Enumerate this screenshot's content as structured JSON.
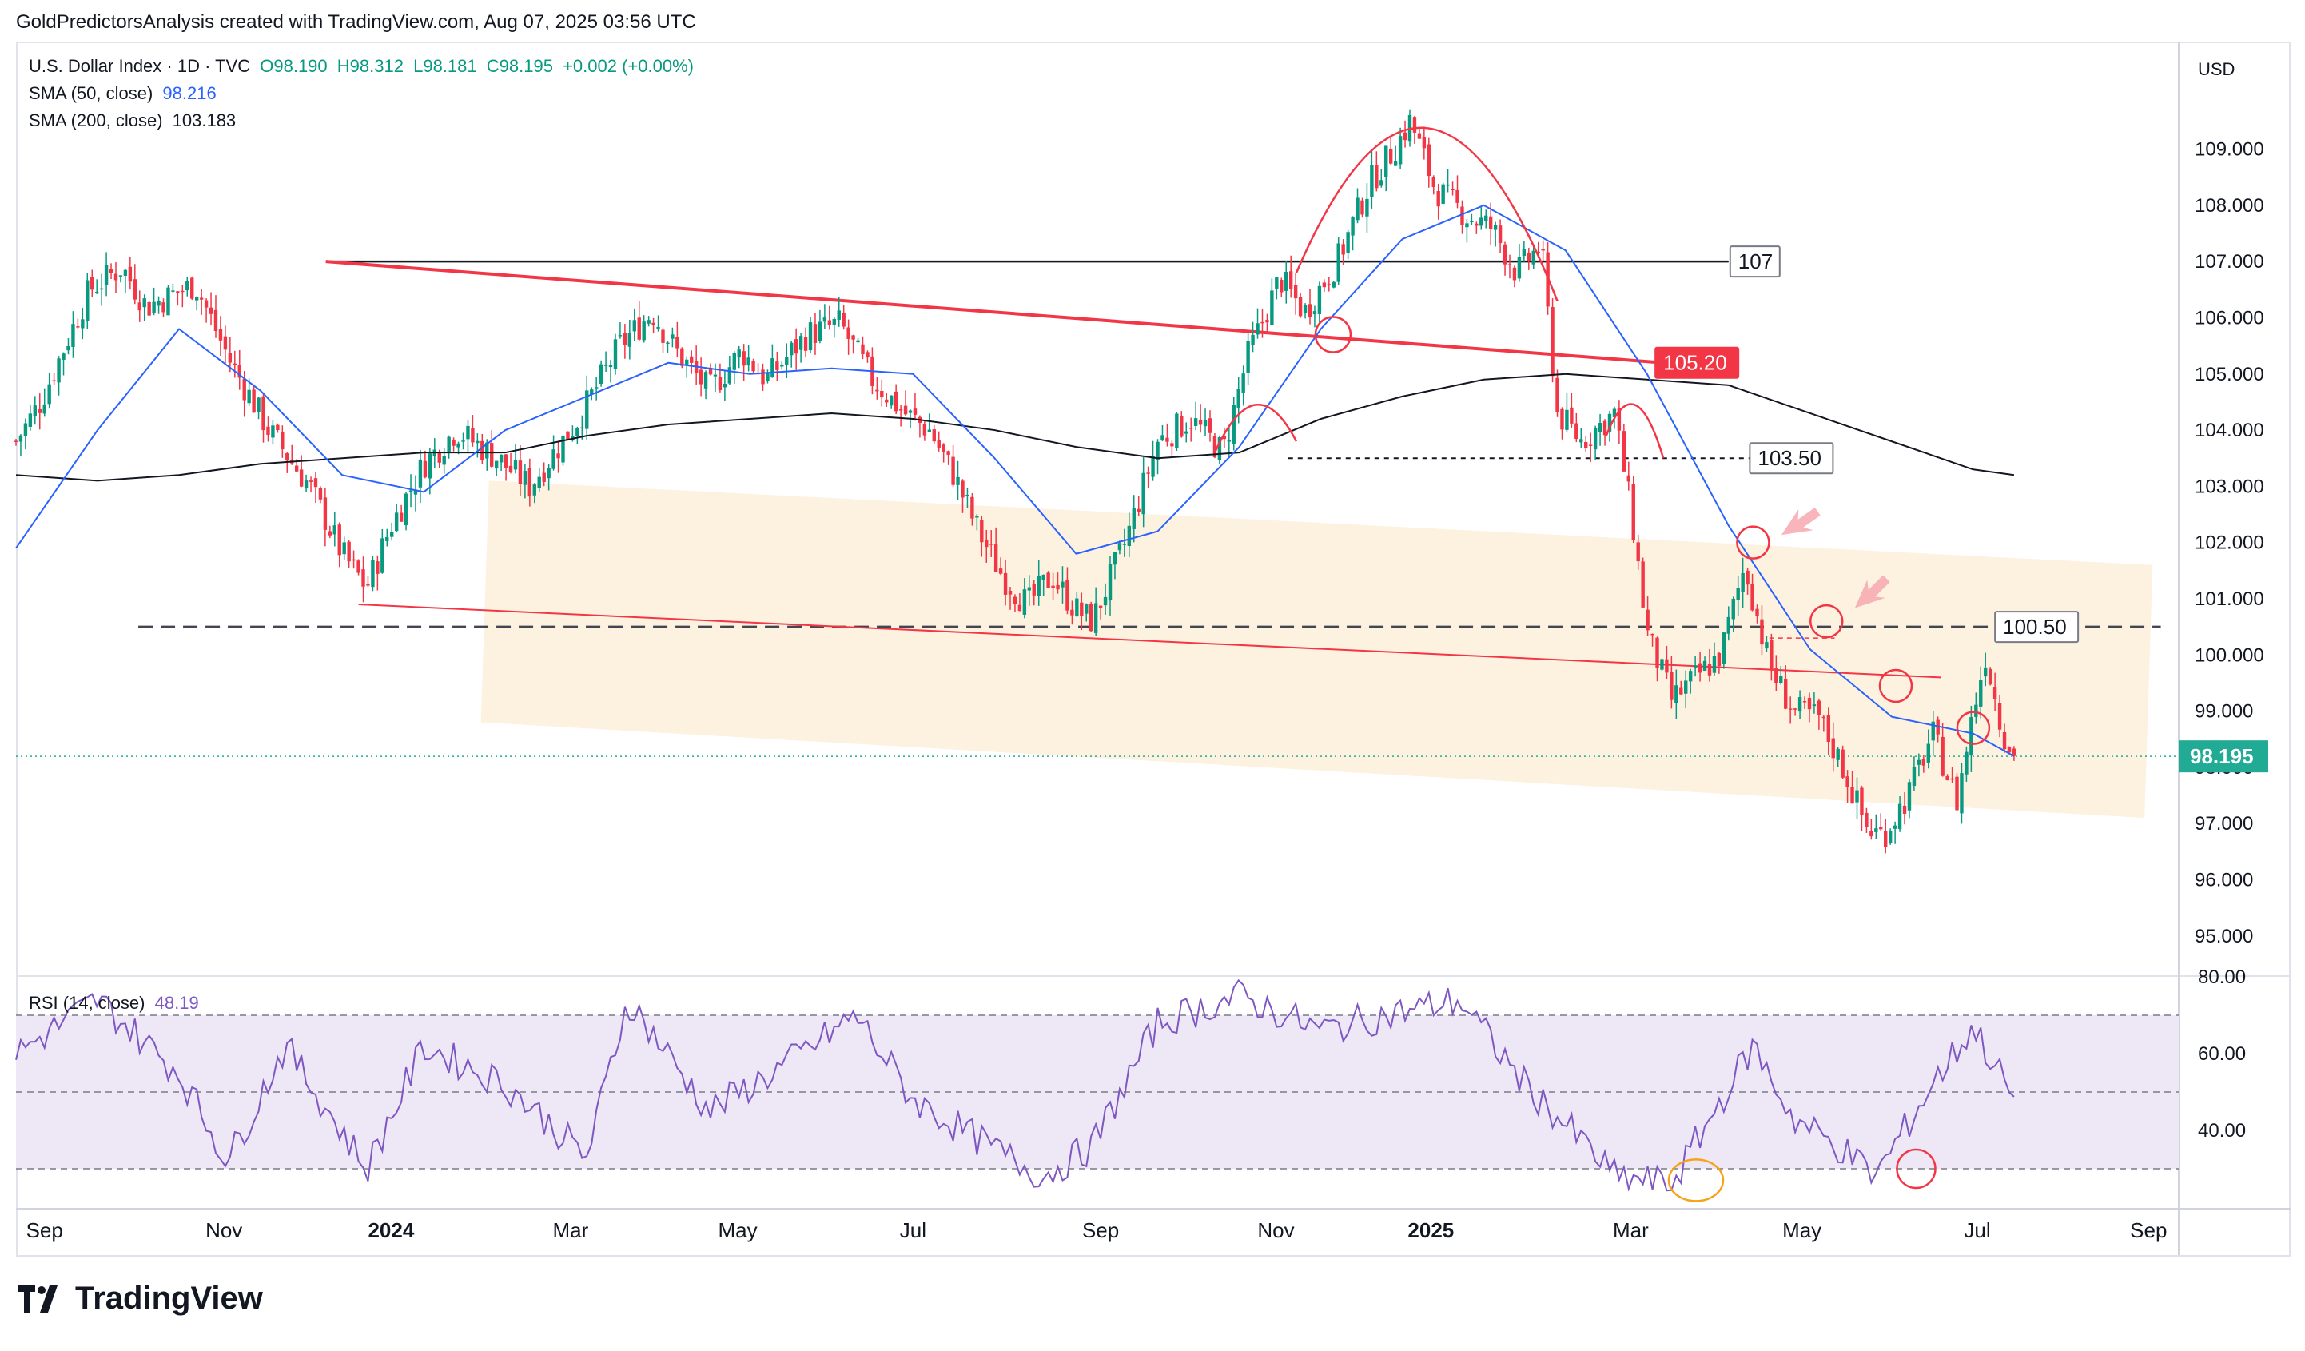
{
  "header": {
    "caption": "GoldPredictorsAnalysis created with TradingView.com, Aug 07, 2025 03:56 UTC"
  },
  "legend": {
    "symbol_line": "U.S. Dollar Index · 1D · TVC",
    "ohlc": {
      "open": "O98.190",
      "high": "H98.312",
      "low": "L98.181",
      "close": "C98.195",
      "change": "+0.002 (+0.00%)"
    },
    "sma50_label": "SMA (50, close)",
    "sma50_value": "98.216",
    "sma200_label": "SMA (200, close)",
    "sma200_value": "103.183",
    "rsi_label": "RSI (14, close)",
    "rsi_value": "48.19"
  },
  "footer": {
    "brand": "TradingView"
  },
  "colors": {
    "up": "#089981",
    "down": "#f23645",
    "sma50": "#2962ff",
    "sma200": "#131722",
    "rsi": "#7e57c2",
    "channel": "#fdf0dd",
    "rsi_band": "#ede7f6",
    "accent_red": "#f23645",
    "price_tag": "#22ab94"
  },
  "chart_data": [
    {
      "type": "candlestick",
      "title": "U.S. Dollar Index · 1D · TVC",
      "currency": "USD",
      "x_axis_ticks": [
        "Sep",
        "Nov",
        "2024",
        "Mar",
        "May",
        "Jul",
        "Sep",
        "Nov",
        "2025",
        "Mar",
        "May",
        "Jul",
        "Sep"
      ],
      "y_axis_ticks": [
        "109.000",
        "108.000",
        "107.000",
        "106.000",
        "105.000",
        "104.000",
        "103.000",
        "102.000",
        "101.000",
        "100.000",
        "99.000",
        "98.000",
        "97.000",
        "96.000",
        "95.000"
      ],
      "ylim": [
        94.3,
        110.8
      ],
      "last_price_label": "98.195",
      "last_price": 98.195,
      "close_path": [
        {
          "t": 0.0,
          "v": 103.8
        },
        {
          "t": 0.3,
          "v": 104.5
        },
        {
          "t": 0.9,
          "v": 106.5
        },
        {
          "t": 1.3,
          "v": 106.9
        },
        {
          "t": 1.6,
          "v": 106.2
        },
        {
          "t": 2.2,
          "v": 106.6
        },
        {
          "t": 2.6,
          "v": 105.3
        },
        {
          "t": 3.1,
          "v": 104.0
        },
        {
          "t": 3.6,
          "v": 103.0
        },
        {
          "t": 4.0,
          "v": 101.8
        },
        {
          "t": 4.3,
          "v": 101.2
        },
        {
          "t": 4.6,
          "v": 102.3
        },
        {
          "t": 5.0,
          "v": 103.4
        },
        {
          "t": 5.4,
          "v": 104.0
        },
        {
          "t": 5.9,
          "v": 103.5
        },
        {
          "t": 6.3,
          "v": 103.0
        },
        {
          "t": 6.9,
          "v": 104.2
        },
        {
          "t": 7.4,
          "v": 105.5
        },
        {
          "t": 7.8,
          "v": 106.1
        },
        {
          "t": 8.1,
          "v": 105.4
        },
        {
          "t": 8.5,
          "v": 104.7
        },
        {
          "t": 8.9,
          "v": 105.4
        },
        {
          "t": 9.2,
          "v": 104.9
        },
        {
          "t": 9.7,
          "v": 105.7
        },
        {
          "t": 10.1,
          "v": 105.9
        },
        {
          "t": 10.5,
          "v": 104.9
        },
        {
          "t": 10.9,
          "v": 104.3
        },
        {
          "t": 11.2,
          "v": 104.0
        },
        {
          "t": 11.5,
          "v": 103.2
        },
        {
          "t": 11.8,
          "v": 102.2
        },
        {
          "t": 12.1,
          "v": 101.4
        },
        {
          "t": 12.4,
          "v": 100.9
        },
        {
          "t": 12.7,
          "v": 101.4
        },
        {
          "t": 13.0,
          "v": 100.8
        },
        {
          "t": 13.2,
          "v": 100.6
        },
        {
          "t": 13.6,
          "v": 102.0
        },
        {
          "t": 14.0,
          "v": 103.8
        },
        {
          "t": 14.4,
          "v": 104.2
        },
        {
          "t": 14.8,
          "v": 103.6
        },
        {
          "t": 15.1,
          "v": 105.3
        },
        {
          "t": 15.5,
          "v": 106.7
        },
        {
          "t": 15.8,
          "v": 106.1
        },
        {
          "t": 16.2,
          "v": 107.0
        },
        {
          "t": 16.6,
          "v": 108.4
        },
        {
          "t": 16.9,
          "v": 109.0
        },
        {
          "t": 17.1,
          "v": 109.5
        },
        {
          "t": 17.4,
          "v": 108.3
        },
        {
          "t": 17.8,
          "v": 107.8
        },
        {
          "t": 18.1,
          "v": 107.6
        },
        {
          "t": 18.4,
          "v": 106.8
        },
        {
          "t": 18.7,
          "v": 107.3
        },
        {
          "t": 18.9,
          "v": 104.3
        },
        {
          "t": 19.2,
          "v": 103.8
        },
        {
          "t": 19.6,
          "v": 104.3
        },
        {
          "t": 19.8,
          "v": 102.6
        },
        {
          "t": 20.0,
          "v": 100.4
        },
        {
          "t": 20.3,
          "v": 99.2
        },
        {
          "t": 20.6,
          "v": 99.6
        },
        {
          "t": 20.9,
          "v": 100.0
        },
        {
          "t": 21.2,
          "v": 101.6
        },
        {
          "t": 21.5,
          "v": 99.8
        },
        {
          "t": 21.8,
          "v": 99.0
        },
        {
          "t": 22.1,
          "v": 98.9
        },
        {
          "t": 22.4,
          "v": 98.0
        },
        {
          "t": 22.7,
          "v": 96.9
        },
        {
          "t": 22.9,
          "v": 96.8
        },
        {
          "t": 23.2,
          "v": 97.5
        },
        {
          "t": 23.5,
          "v": 98.6
        },
        {
          "t": 23.8,
          "v": 97.4
        },
        {
          "t": 24.0,
          "v": 99.0
        },
        {
          "t": 24.15,
          "v": 100.0
        },
        {
          "t": 24.35,
          "v": 98.7
        },
        {
          "t": 24.5,
          "v": 98.2
        }
      ],
      "series": [
        {
          "name": "SMA (50, close)",
          "values": [
            {
              "t": 0.0,
              "v": 101.9
            },
            {
              "t": 1.0,
              "v": 104.0
            },
            {
              "t": 2.0,
              "v": 105.8
            },
            {
              "t": 3.0,
              "v": 104.7
            },
            {
              "t": 4.0,
              "v": 103.2
            },
            {
              "t": 5.0,
              "v": 102.9
            },
            {
              "t": 6.0,
              "v": 104.0
            },
            {
              "t": 7.0,
              "v": 104.6
            },
            {
              "t": 8.0,
              "v": 105.2
            },
            {
              "t": 9.0,
              "v": 105.0
            },
            {
              "t": 10.0,
              "v": 105.1
            },
            {
              "t": 11.0,
              "v": 105.0
            },
            {
              "t": 12.0,
              "v": 103.5
            },
            {
              "t": 13.0,
              "v": 101.8
            },
            {
              "t": 14.0,
              "v": 102.2
            },
            {
              "t": 15.0,
              "v": 103.7
            },
            {
              "t": 16.0,
              "v": 105.8
            },
            {
              "t": 17.0,
              "v": 107.4
            },
            {
              "t": 18.0,
              "v": 108.0
            },
            {
              "t": 19.0,
              "v": 107.2
            },
            {
              "t": 20.0,
              "v": 105.0
            },
            {
              "t": 21.0,
              "v": 102.3
            },
            {
              "t": 22.0,
              "v": 100.1
            },
            {
              "t": 23.0,
              "v": 98.9
            },
            {
              "t": 24.0,
              "v": 98.6
            },
            {
              "t": 24.5,
              "v": 98.2
            }
          ]
        },
        {
          "name": "SMA (200, close)",
          "values": [
            {
              "t": 0.0,
              "v": 103.2
            },
            {
              "t": 1.0,
              "v": 103.1
            },
            {
              "t": 2.0,
              "v": 103.2
            },
            {
              "t": 3.0,
              "v": 103.4
            },
            {
              "t": 4.0,
              "v": 103.5
            },
            {
              "t": 5.0,
              "v": 103.6
            },
            {
              "t": 6.0,
              "v": 103.6
            },
            {
              "t": 7.0,
              "v": 103.9
            },
            {
              "t": 8.0,
              "v": 104.1
            },
            {
              "t": 9.0,
              "v": 104.2
            },
            {
              "t": 10.0,
              "v": 104.3
            },
            {
              "t": 11.0,
              "v": 104.2
            },
            {
              "t": 12.0,
              "v": 104.0
            },
            {
              "t": 13.0,
              "v": 103.7
            },
            {
              "t": 14.0,
              "v": 103.5
            },
            {
              "t": 15.0,
              "v": 103.6
            },
            {
              "t": 16.0,
              "v": 104.2
            },
            {
              "t": 17.0,
              "v": 104.6
            },
            {
              "t": 18.0,
              "v": 104.9
            },
            {
              "t": 19.0,
              "v": 105.0
            },
            {
              "t": 20.0,
              "v": 104.9
            },
            {
              "t": 21.0,
              "v": 104.8
            },
            {
              "t": 22.0,
              "v": 104.3
            },
            {
              "t": 23.0,
              "v": 103.8
            },
            {
              "t": 24.0,
              "v": 103.3
            },
            {
              "t": 24.5,
              "v": 103.2
            }
          ]
        }
      ],
      "levels": [
        {
          "label": "107",
          "value": 107.0
        },
        {
          "label": "105.20",
          "value": 105.2
        },
        {
          "label": "103.50",
          "value": 103.5
        },
        {
          "label": "100.50",
          "value": 100.5
        }
      ]
    },
    {
      "type": "line",
      "title": "RSI (14, close)",
      "y_axis_ticks": [
        "80.00",
        "60.00",
        "40.00"
      ],
      "ylim": [
        20,
        80
      ],
      "reference_lines": [
        70,
        50,
        30
      ],
      "series": [
        {
          "name": "RSI (14, close)",
          "values": [
            {
              "t": 0.0,
              "v": 60
            },
            {
              "t": 1.0,
              "v": 74
            },
            {
              "t": 2.0,
              "v": 55
            },
            {
              "t": 2.6,
              "v": 32
            },
            {
              "t": 3.3,
              "v": 62
            },
            {
              "t": 4.3,
              "v": 30
            },
            {
              "t": 5.0,
              "v": 62
            },
            {
              "t": 6.0,
              "v": 52
            },
            {
              "t": 7.0,
              "v": 33
            },
            {
              "t": 7.5,
              "v": 74
            },
            {
              "t": 8.5,
              "v": 45
            },
            {
              "t": 9.5,
              "v": 58
            },
            {
              "t": 10.3,
              "v": 70
            },
            {
              "t": 11.0,
              "v": 48
            },
            {
              "t": 12.0,
              "v": 35
            },
            {
              "t": 12.6,
              "v": 28
            },
            {
              "t": 13.2,
              "v": 36
            },
            {
              "t": 14.0,
              "v": 68
            },
            {
              "t": 15.0,
              "v": 75
            },
            {
              "t": 16.0,
              "v": 66
            },
            {
              "t": 16.8,
              "v": 70
            },
            {
              "t": 17.7,
              "v": 74
            },
            {
              "t": 18.5,
              "v": 52
            },
            {
              "t": 19.3,
              "v": 35
            },
            {
              "t": 19.6,
              "v": 28
            },
            {
              "t": 20.3,
              "v": 26
            },
            {
              "t": 20.8,
              "v": 44
            },
            {
              "t": 21.3,
              "v": 62
            },
            {
              "t": 21.8,
              "v": 43
            },
            {
              "t": 22.4,
              "v": 35
            },
            {
              "t": 22.8,
              "v": 28
            },
            {
              "t": 23.5,
              "v": 52
            },
            {
              "t": 24.0,
              "v": 67
            },
            {
              "t": 24.5,
              "v": 48
            }
          ]
        }
      ]
    }
  ]
}
